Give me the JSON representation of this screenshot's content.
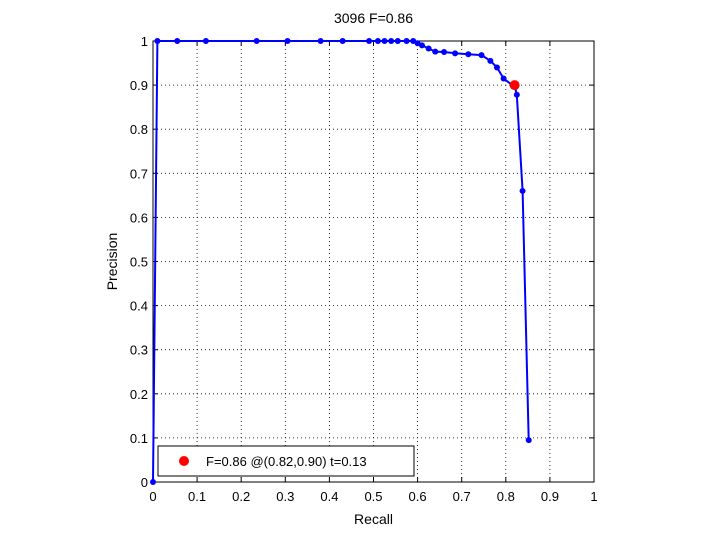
{
  "chart_data": {
    "type": "line",
    "title": "3096 F=0.86",
    "xlabel": "Recall",
    "ylabel": "Precision",
    "xlim": [
      0,
      1
    ],
    "ylim": [
      0,
      1
    ],
    "xtick_labels": [
      "0",
      "0.1",
      "0.2",
      "0.3",
      "0.4",
      "0.5",
      "0.6",
      "0.7",
      "0.8",
      "0.9",
      "1"
    ],
    "ytick_labels": [
      "0",
      "0.1",
      "0.2",
      "0.3",
      "0.4",
      "0.5",
      "0.6",
      "0.7",
      "0.8",
      "0.9",
      "1"
    ],
    "grid": true,
    "series": [
      {
        "color": "#0000ff",
        "marker": "dot",
        "x": [
          0.852,
          0.838,
          0.825,
          0.821,
          0.795,
          0.78,
          0.765,
          0.745,
          0.715,
          0.685,
          0.66,
          0.64,
          0.625,
          0.61,
          0.6,
          0.59,
          0.575,
          0.555,
          0.54,
          0.525,
          0.51,
          0.49,
          0.43,
          0.38,
          0.305,
          0.235,
          0.12,
          0.055,
          0.01,
          0.0
        ],
        "y": [
          0.095,
          0.66,
          0.878,
          0.895,
          0.915,
          0.94,
          0.955,
          0.968,
          0.97,
          0.972,
          0.975,
          0.976,
          0.983,
          0.99,
          0.995,
          1.0,
          1.0,
          1.0,
          1.0,
          1.0,
          1.0,
          1.0,
          1.0,
          1.0,
          1.0,
          1.0,
          1.0,
          1.0,
          1.0,
          0.0
        ]
      }
    ],
    "highlight_point": {
      "x": 0.82,
      "y": 0.9,
      "color": "#ff0000"
    },
    "legend": {
      "location": "bottom-left",
      "entries": [
        {
          "label": "F=0.86 @(0.82,0.90) t=0.13",
          "color": "#ff0000",
          "marker": "dot"
        }
      ]
    }
  }
}
